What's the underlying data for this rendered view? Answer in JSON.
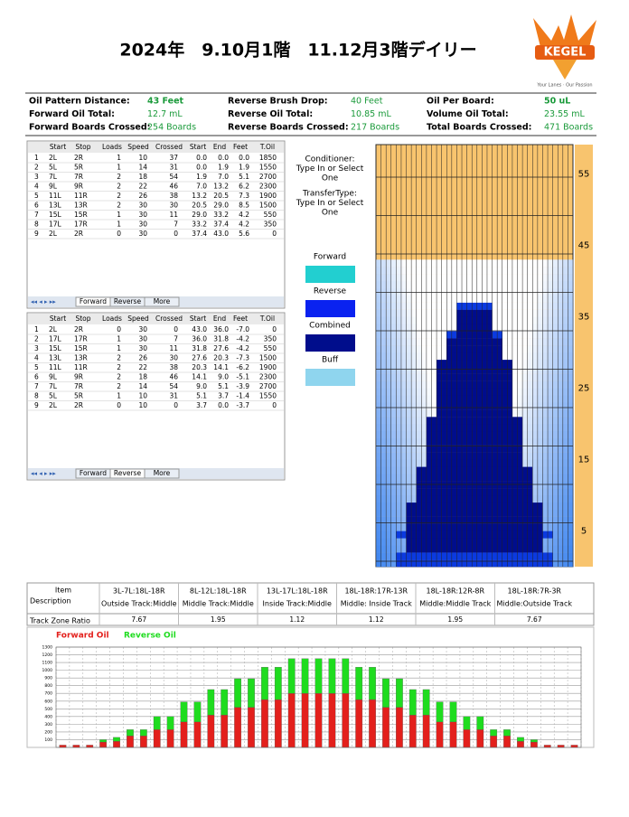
{
  "header": {
    "title": "2024年　9.10月1階　11.12月3階デイリー",
    "logo": "KEGEL",
    "logo_tagline": "Your Lanes · Our Passion"
  },
  "summary": [
    [
      {
        "label": "Oil Pattern Distance:",
        "value": "43 Feet"
      },
      {
        "label": "Reverse Brush Drop:",
        "value": "40 Feet"
      },
      {
        "label": "Oil Per Board:",
        "value": "50 uL"
      }
    ],
    [
      {
        "label": "Forward Oil Total:",
        "value": "12.7 mL"
      },
      {
        "label": "Reverse Oil Total:",
        "value": "10.85 mL"
      },
      {
        "label": "Volume Oil Total:",
        "value": "23.55 mL"
      }
    ],
    [
      {
        "label": "Forward Boards Crossed:",
        "value": "254 Boards"
      },
      {
        "label": "Reverse Boards Crossed:",
        "value": "217 Boards"
      },
      {
        "label": "Total Boards Crossed:",
        "value": "471 Boards"
      }
    ]
  ],
  "forward_table": {
    "headers": [
      "Start",
      "Stop",
      "Loads",
      "Speed",
      "Crossed",
      "Start",
      "End",
      "Feet",
      "T.Oil"
    ],
    "rows": [
      [
        "1",
        "2L",
        "2R",
        "1",
        "10",
        "37",
        "0.0",
        "0.0",
        "0.0",
        "1850"
      ],
      [
        "2",
        "5L",
        "5R",
        "1",
        "14",
        "31",
        "0.0",
        "1.9",
        "1.9",
        "1550"
      ],
      [
        "3",
        "7L",
        "7R",
        "2",
        "18",
        "54",
        "1.9",
        "7.0",
        "5.1",
        "2700"
      ],
      [
        "4",
        "9L",
        "9R",
        "2",
        "22",
        "46",
        "7.0",
        "13.2",
        "6.2",
        "2300"
      ],
      [
        "5",
        "11L",
        "11R",
        "2",
        "26",
        "38",
        "13.2",
        "20.5",
        "7.3",
        "1900"
      ],
      [
        "6",
        "13L",
        "13R",
        "2",
        "30",
        "30",
        "20.5",
        "29.0",
        "8.5",
        "1500"
      ],
      [
        "7",
        "15L",
        "15R",
        "1",
        "30",
        "11",
        "29.0",
        "33.2",
        "4.2",
        "550"
      ],
      [
        "8",
        "17L",
        "17R",
        "1",
        "30",
        "7",
        "33.2",
        "37.4",
        "4.2",
        "350"
      ],
      [
        "9",
        "2L",
        "2R",
        "0",
        "30",
        "0",
        "37.4",
        "43.0",
        "5.6",
        "0"
      ]
    ],
    "tabs": [
      "Forward",
      "Reverse",
      "More"
    ]
  },
  "reverse_table": {
    "headers": [
      "Start",
      "Stop",
      "Loads",
      "Speed",
      "Crossed",
      "Start",
      "End",
      "Feet",
      "T.Oil"
    ],
    "rows": [
      [
        "1",
        "2L",
        "2R",
        "0",
        "30",
        "0",
        "43.0",
        "36.0",
        "-7.0",
        "0"
      ],
      [
        "2",
        "17L",
        "17R",
        "1",
        "30",
        "7",
        "36.0",
        "31.8",
        "-4.2",
        "350"
      ],
      [
        "3",
        "15L",
        "15R",
        "1",
        "30",
        "11",
        "31.8",
        "27.6",
        "-4.2",
        "550"
      ],
      [
        "4",
        "13L",
        "13R",
        "2",
        "26",
        "30",
        "27.6",
        "20.3",
        "-7.3",
        "1500"
      ],
      [
        "5",
        "11L",
        "11R",
        "2",
        "22",
        "38",
        "20.3",
        "14.1",
        "-6.2",
        "1900"
      ],
      [
        "6",
        "9L",
        "9R",
        "2",
        "18",
        "46",
        "14.1",
        "9.0",
        "-5.1",
        "2300"
      ],
      [
        "7",
        "7L",
        "7R",
        "2",
        "14",
        "54",
        "9.0",
        "5.1",
        "-3.9",
        "2700"
      ],
      [
        "8",
        "5L",
        "5R",
        "1",
        "10",
        "31",
        "5.1",
        "3.7",
        "-1.4",
        "1550"
      ],
      [
        "9",
        "2L",
        "2R",
        "0",
        "10",
        "0",
        "3.7",
        "0.0",
        "-3.7",
        "0"
      ]
    ],
    "tabs": [
      "Forward",
      "Reverse",
      "More"
    ]
  },
  "options": {
    "conditioner": [
      "Conditioner:",
      "Type In or Select",
      "One"
    ],
    "transfer": [
      "TransferType:",
      "Type In or Select",
      "One"
    ]
  },
  "legend": [
    {
      "name": "Forward",
      "color": "#22cfd0"
    },
    {
      "name": "Reverse",
      "color": "#0a22f0"
    },
    {
      "name": "Combined",
      "color": "#000d8c"
    },
    {
      "name": "Buff",
      "color": "#8fd5ee"
    }
  ],
  "lane_axis": {
    "ticks": [
      "55",
      "45",
      "35",
      "25",
      "15",
      "5"
    ]
  },
  "track_zone": {
    "row_labels": [
      "Item",
      "Description",
      "Track Zone Ratio"
    ],
    "items": [
      "3L-7L:18L-18R",
      "8L-12L:18L-18R",
      "13L-17L:18L-18R",
      "18L-18R:17R-13R",
      "18L-18R:12R-8R",
      "18L-18R:7R-3R"
    ],
    "descriptions": [
      "Outside Track:Middle",
      "Middle Track:Middle",
      "Inside Track:Middle",
      "Middle: Inside Track",
      "Middle:Middle Track",
      "Middle:Outside Track"
    ],
    "ratios": [
      "7.67",
      "1.95",
      "1.12",
      "1.12",
      "1.95",
      "7.67"
    ]
  },
  "chart_data": {
    "type": "bar",
    "stacked": true,
    "grid": true,
    "series": [
      {
        "name": "Forward Oil",
        "color": "#e3201c",
        "values": [
          30,
          30,
          30,
          70,
          80,
          150,
          150,
          230,
          230,
          330,
          330,
          420,
          420,
          520,
          520,
          620,
          620,
          700,
          700,
          700,
          700,
          700,
          620,
          620,
          520,
          520,
          420,
          420,
          330,
          330,
          230,
          230,
          150,
          150,
          80,
          70,
          30,
          30,
          30
        ]
      },
      {
        "name": "Reverse Oil",
        "color": "#1fdc1f",
        "values": [
          0,
          0,
          0,
          30,
          50,
          80,
          80,
          170,
          170,
          260,
          260,
          330,
          330,
          370,
          370,
          420,
          420,
          450,
          450,
          450,
          450,
          450,
          420,
          420,
          370,
          370,
          330,
          330,
          260,
          260,
          170,
          170,
          80,
          80,
          50,
          30,
          0,
          0,
          0
        ]
      }
    ],
    "ylim": [
      0,
      1300
    ],
    "yticks": [
      100,
      200,
      300,
      400,
      500,
      600,
      700,
      800,
      900,
      1000,
      1100,
      1200,
      1300
    ]
  }
}
